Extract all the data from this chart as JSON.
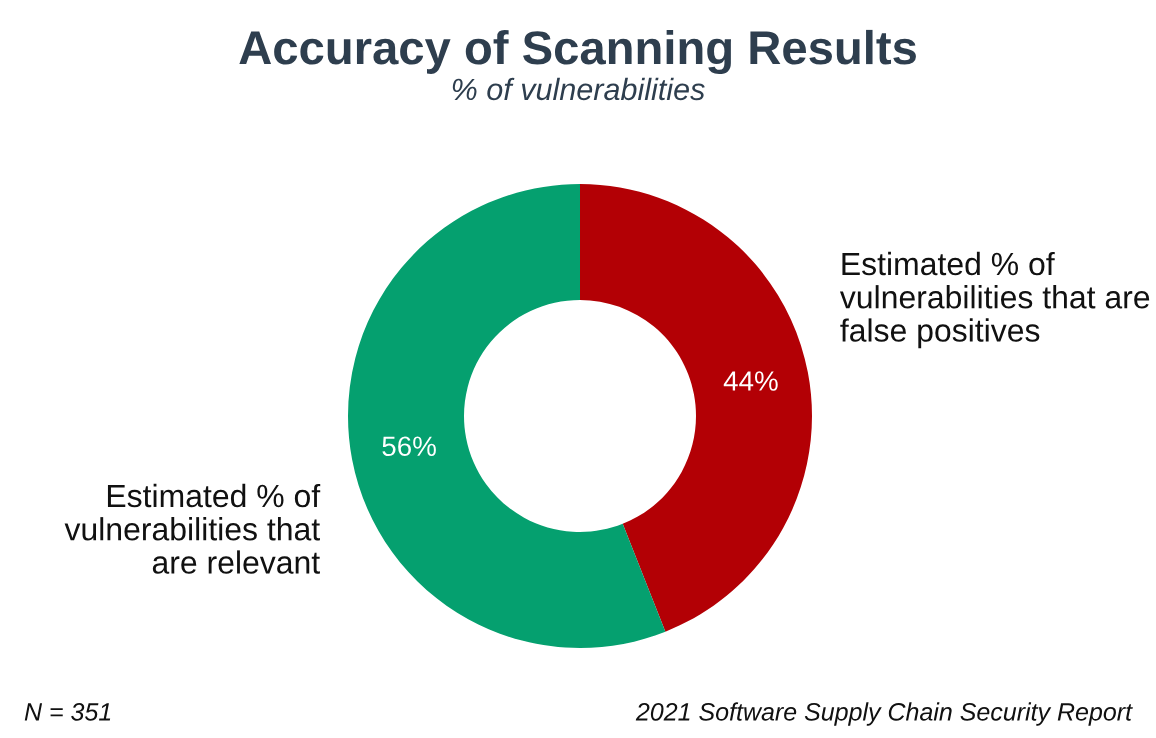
{
  "chart_data": {
    "type": "donut",
    "title": "Accuracy of Scanning Results",
    "subtitle": "% of vulnerabilities",
    "categories": [
      "Estimated % of\nvulnerabilities that are\nfalse positives",
      "Estimated % of\nvulnerabilities that\nare relevant"
    ],
    "values": [
      44,
      56
    ],
    "colors": [
      "#b30005",
      "#05a06f"
    ],
    "value_labels": [
      "44%",
      "56%"
    ],
    "annotations": [
      "N = 351",
      "2021 Software Supply Chain Security Report"
    ],
    "legend": false
  }
}
